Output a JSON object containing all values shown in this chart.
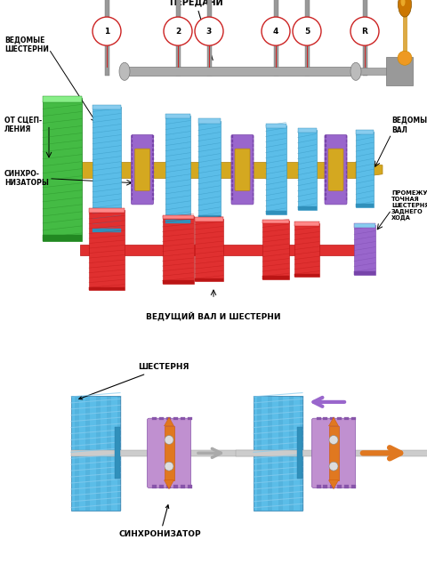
{
  "bg_color": "#ffffff",
  "upper": {
    "label_peredachi": "ПЕРЕДАЧИ",
    "label_vedomye": "ВЕДОМЫЕ\nШЕСТЕРНИ",
    "label_ot_scep": "ОТ СЦЕП-\nЛЕНИЯ",
    "label_sinxro": "СИНХРО-\nНИЗАТОРЫ",
    "label_vedomyi_val": "ВЕДОМЫЙ\nВАЛ",
    "label_promezhut": "ПРОМЕЖУ-\nТОЧНАЯ\nШЕСТЕРНЯ\nЗАДНЕГО\nХОДА",
    "label_vedushchii": "ВЕДУЩИЙ ВАЛ И ШЕСТЕРНИ",
    "gear_numbers": [
      "1",
      "2",
      "3",
      "4",
      "5",
      "R"
    ],
    "c_blue": "#5bbde8",
    "c_blue_dark": "#3090bb",
    "c_blue_mid": "#2a7aaa",
    "c_red": "#e03030",
    "c_red_dark": "#bb1515",
    "c_green": "#44bb44",
    "c_green_dark": "#228822",
    "c_purple": "#9966cc",
    "c_purple_dark": "#7744aa",
    "c_gold": "#d4a820",
    "c_gold_dark": "#b08010",
    "c_shaft_gold": "#d4a820",
    "c_gray": "#aaaaaa",
    "c_gray_dark": "#777777",
    "c_red_circ": "#cc2222",
    "c_white": "#ffffff",
    "c_black": "#000000",
    "c_orange": "#e07820",
    "c_lever_gold": "#cc8800"
  },
  "lower": {
    "label_shesternya": "ШЕСТЕРНЯ",
    "label_sinxronizator": "СИНХРОНИЗАТОР",
    "c_blue": "#5bbde8",
    "c_blue_dark": "#2a7aaa",
    "c_blue_stripe": "#88ccee",
    "c_purple": "#c090d0",
    "c_purple_dark": "#9966bb",
    "c_purple_edge": "#8855aa",
    "c_orange": "#e07820",
    "c_gray_shaft": "#cccccc",
    "c_gray_arrow": "#aaaaaa",
    "c_purple_arrow": "#9966cc",
    "c_orange_arrow": "#e07820",
    "c_ball": "#dddddd",
    "c_ball_edge": "#888888",
    "c_black": "#000000"
  }
}
